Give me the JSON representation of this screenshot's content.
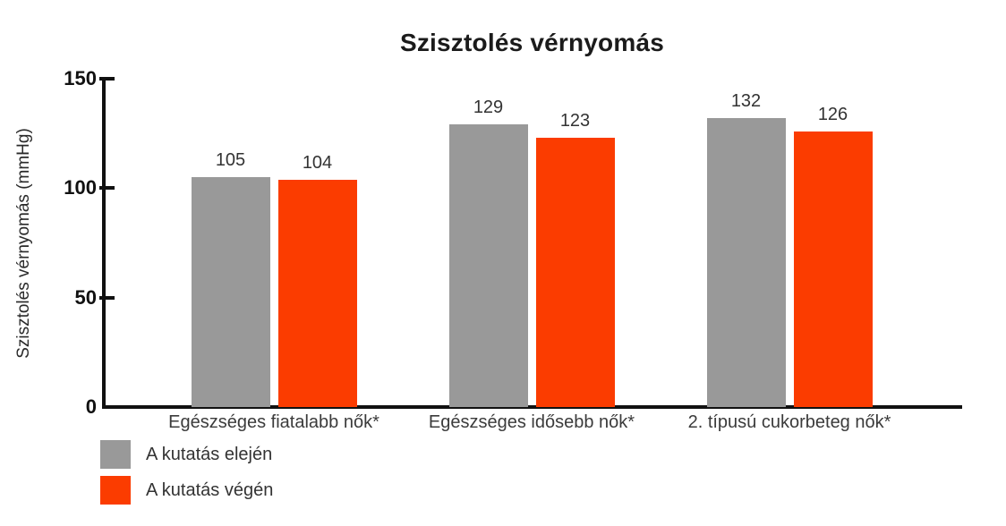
{
  "title": "Szisztolés vérnyomás",
  "chart_data": {
    "type": "bar",
    "title": "Szisztolés vérnyomás",
    "xlabel": "",
    "ylabel": "Szisztolés vérnyomás (mmHg)",
    "ylim": [
      0,
      150
    ],
    "yticks": [
      0,
      50,
      100,
      150
    ],
    "grid": false,
    "value_labels_shown": true,
    "legend_position": "bottom-left",
    "categories": [
      "Egészséges fiatalabb nők*",
      "Egészséges idősebb nők*",
      "2. típusú cukorbeteg nők*"
    ],
    "series": [
      {
        "name": "A kutatás elején",
        "color": "#999999",
        "values": [
          105,
          129,
          132
        ]
      },
      {
        "name": "A kutatás végén",
        "color": "#FB3C00",
        "values": [
          104,
          123,
          126
        ]
      }
    ]
  },
  "colors": {
    "axis": "#111111",
    "title_text": "#1b1b1b",
    "value_label_text": "#333333",
    "category_label_text": "#3b3b3b",
    "background": "#ffffff"
  }
}
